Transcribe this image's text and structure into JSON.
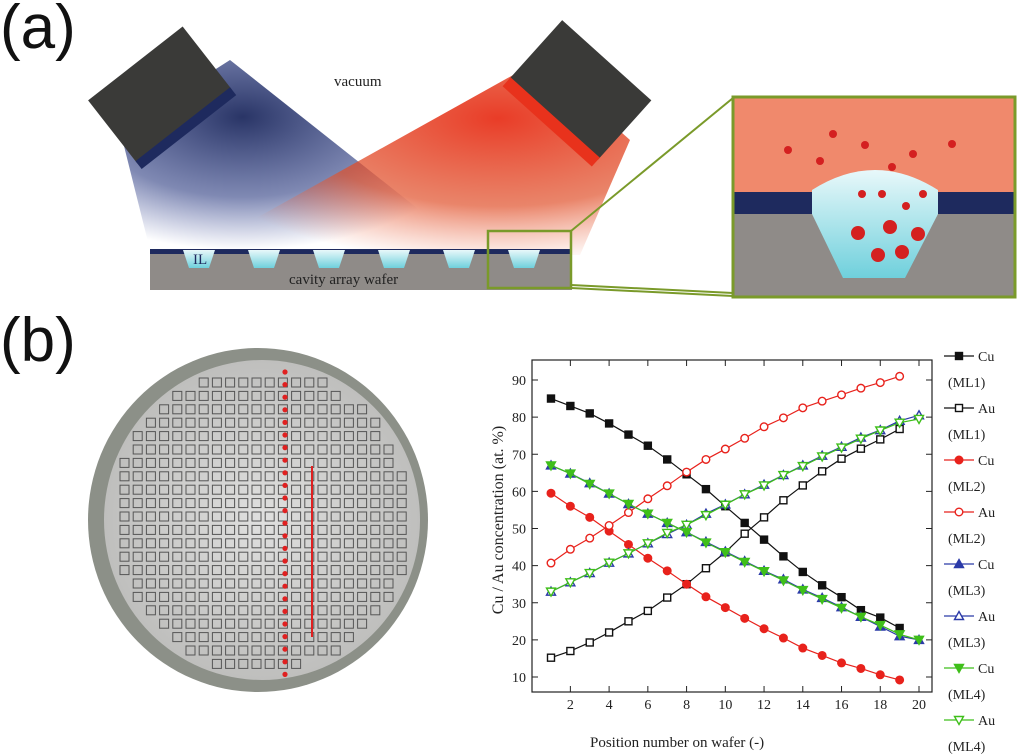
{
  "panel_a": {
    "label": "(a)",
    "vacuum": "vacuum",
    "il": "IL",
    "wafer": "cavity array wafer"
  },
  "panel_b": {
    "label": "(b)"
  },
  "colors": {
    "black": "#111111",
    "red": "#e8221c",
    "blue": "#2b3aa8",
    "green": "#3fbf1a",
    "source_blue": "#1e2a5e",
    "source_red": "#e8321c",
    "wafer": "#8f8b88",
    "il": "#7fd8e0",
    "inset_border": "#7a9a2a"
  },
  "chart_data": {
    "type": "line",
    "title": "",
    "xlabel": "Position number on wafer (-)",
    "ylabel": "Cu / Au concentration (at. %)",
    "xlim": [
      0.5,
      20.5
    ],
    "ylim": [
      7,
      95
    ],
    "xticks": [
      2,
      4,
      6,
      8,
      10,
      12,
      14,
      16,
      18,
      20
    ],
    "yticks": [
      10,
      20,
      30,
      40,
      50,
      60,
      70,
      80,
      90
    ],
    "grid": false,
    "legend_placement": "right",
    "series": [
      {
        "name": "Cu",
        "sub": "(ML1)",
        "color": "#111111",
        "marker": "square",
        "filled": true,
        "x": [
          1,
          2,
          3,
          4,
          5,
          6,
          7,
          8,
          9,
          10,
          11,
          12,
          13,
          14,
          15,
          16,
          17,
          18,
          19
        ],
        "values": [
          85,
          83,
          81,
          78.3,
          75.3,
          72.3,
          68.6,
          64.6,
          60.6,
          56,
          51.5,
          47,
          42.5,
          38.3,
          34.7,
          31.5,
          28,
          26,
          23.2
        ]
      },
      {
        "name": "Au",
        "sub": "(ML1)",
        "color": "#111111",
        "marker": "square",
        "filled": false,
        "x": [
          1,
          2,
          3,
          4,
          5,
          6,
          7,
          8,
          9,
          10,
          11,
          12,
          13,
          14,
          15,
          16,
          17,
          18,
          19
        ],
        "values": [
          15.2,
          17,
          19.3,
          22,
          25,
          27.8,
          31.4,
          35,
          39.3,
          43.6,
          48.6,
          53,
          57.6,
          61.6,
          65.4,
          68.8,
          71.5,
          74,
          76.8
        ]
      },
      {
        "name": "Cu",
        "sub": "(ML2)",
        "color": "#e8221c",
        "marker": "circle",
        "filled": true,
        "x": [
          1,
          2,
          3,
          4,
          5,
          6,
          7,
          8,
          9,
          10,
          11,
          12,
          13,
          14,
          15,
          16,
          17,
          18,
          19
        ],
        "values": [
          59.5,
          56,
          53,
          49.3,
          45.7,
          42,
          38.6,
          35,
          31.6,
          28.7,
          25.8,
          23,
          20.5,
          17.8,
          15.8,
          13.8,
          12.3,
          10.6,
          9.2
        ]
      },
      {
        "name": "Au",
        "sub": "(ML2)",
        "color": "#e8221c",
        "marker": "circle",
        "filled": false,
        "x": [
          1,
          2,
          3,
          4,
          5,
          6,
          7,
          8,
          9,
          10,
          11,
          12,
          13,
          14,
          15,
          16,
          17,
          18,
          19
        ],
        "values": [
          40.7,
          44.4,
          47.4,
          50.8,
          54.3,
          58,
          61.5,
          65.2,
          68.6,
          71.4,
          74.3,
          77.4,
          79.8,
          82.5,
          84.3,
          86,
          87.8,
          89.3,
          91
        ]
      },
      {
        "name": "Cu",
        "sub": "(ML3)",
        "color": "#2b3aa8",
        "marker": "triangle-up",
        "filled": true,
        "x": [
          1,
          2,
          3,
          4,
          5,
          6,
          7,
          8,
          9,
          10,
          11,
          12,
          13,
          14,
          15,
          16,
          17,
          18,
          19,
          20
        ],
        "values": [
          67,
          64.8,
          62.2,
          59.4,
          56.6,
          54,
          51.5,
          49,
          46.4,
          43.8,
          41.2,
          38.6,
          36.3,
          33.6,
          31.3,
          28.8,
          26.2,
          23.6,
          21,
          20
        ]
      },
      {
        "name": "Au",
        "sub": "(ML3)",
        "color": "#2b3aa8",
        "marker": "triangle-up",
        "filled": false,
        "x": [
          1,
          2,
          3,
          4,
          5,
          6,
          7,
          8,
          9,
          10,
          11,
          12,
          13,
          14,
          15,
          16,
          17,
          18,
          19,
          20
        ],
        "values": [
          33,
          35.5,
          38,
          40.8,
          43.3,
          46,
          48.5,
          51,
          54,
          56.5,
          59.2,
          61.8,
          64.4,
          67,
          69.6,
          72,
          74.5,
          76.5,
          79,
          80.5
        ]
      },
      {
        "name": "Cu",
        "sub": "(ML4)",
        "color": "#3fbf1a",
        "marker": "triangle-down",
        "filled": true,
        "x": [
          1,
          2,
          3,
          4,
          5,
          6,
          7,
          8,
          9,
          10,
          11,
          12,
          13,
          14,
          15,
          16,
          17,
          18,
          19,
          20
        ],
        "values": [
          67,
          64.8,
          62,
          59.4,
          56.6,
          54,
          51.5,
          49,
          46.2,
          43.6,
          41,
          38.5,
          36,
          33.4,
          31,
          28.6,
          26.2,
          24,
          21.5,
          20
        ]
      },
      {
        "name": "Au",
        "sub": "(ML4)",
        "color": "#3fbf1a",
        "marker": "triangle-down",
        "filled": false,
        "x": [
          1,
          2,
          3,
          4,
          5,
          6,
          7,
          8,
          9,
          10,
          11,
          12,
          13,
          14,
          15,
          16,
          17,
          18,
          19,
          20
        ],
        "values": [
          33,
          35.5,
          38,
          40.8,
          43.3,
          46,
          48.8,
          51,
          53.6,
          56.4,
          59.2,
          61.6,
          64.4,
          66.8,
          69.4,
          71.8,
          74.2,
          76.4,
          78.5,
          79.5
        ]
      }
    ]
  }
}
